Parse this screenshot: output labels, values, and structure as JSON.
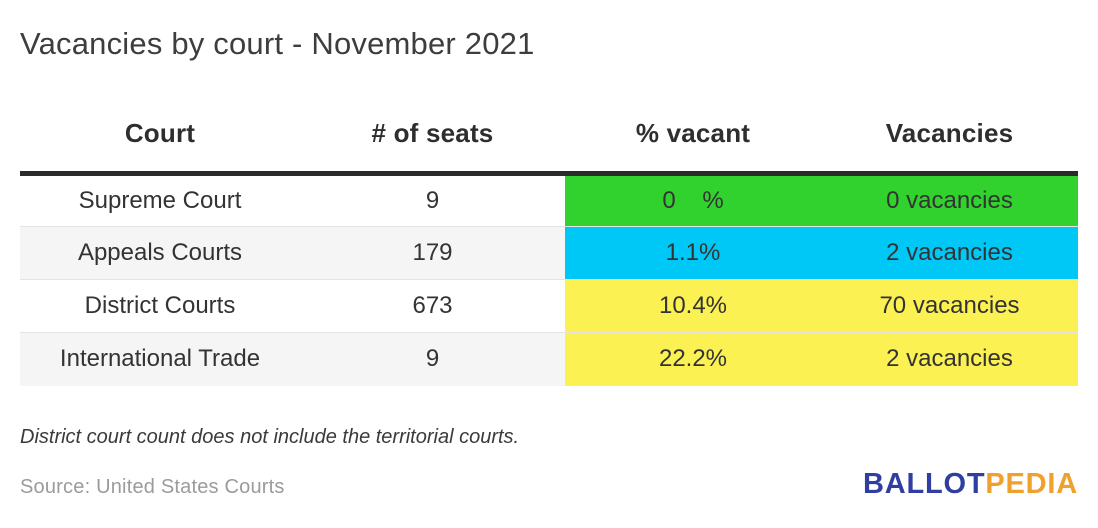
{
  "title": "Vacancies by court - November 2021",
  "table": {
    "columns": [
      "Court",
      "# of seats",
      "% vacant",
      "Vacancies"
    ],
    "rows": [
      {
        "court": "Supreme Court",
        "seats": "9",
        "pct": "0    %",
        "vac": "0 vacancies",
        "color": "#31d12e"
      },
      {
        "court": "Appeals Courts",
        "seats": "179",
        "pct": "1.1%",
        "vac": "2 vacancies",
        "color": "#00c8f6"
      },
      {
        "court": "District Courts",
        "seats": "673",
        "pct": "10.4%",
        "vac": "70 vacancies",
        "color": "#fcf152"
      },
      {
        "court": "International Trade",
        "seats": "9",
        "pct": "22.2%",
        "vac": "2 vacancies",
        "color": "#fcf152"
      }
    ]
  },
  "note": "District court count does not include the territorial courts.",
  "source": "Source: United States Courts",
  "logo": {
    "part1": "BALLOT",
    "part2": "PEDIA",
    "blue": "#2f3ea0",
    "orange": "#f0a02c"
  },
  "colors": {
    "green": "#31d12e",
    "cyan": "#00c8f6",
    "yellow": "#fcf152",
    "stripe": "#f5f5f5",
    "header_rule": "#2b2b2b"
  },
  "chart_data": {
    "type": "table",
    "title": "Vacancies by court - November 2021",
    "columns": [
      "Court",
      "# of seats",
      "% vacant",
      "Vacancies"
    ],
    "categories": [
      "Supreme Court",
      "Appeals Courts",
      "District Courts",
      "International Trade"
    ],
    "series": [
      {
        "name": "# of seats",
        "values": [
          9,
          179,
          673,
          9
        ]
      },
      {
        "name": "% vacant",
        "values": [
          0,
          1.1,
          10.4,
          22.2
        ]
      },
      {
        "name": "Vacancies",
        "values": [
          0,
          2,
          70,
          2
        ]
      }
    ],
    "cell_colors_pct_and_vacancies": [
      "#31d12e",
      "#00c8f6",
      "#fcf152",
      "#fcf152"
    ],
    "note": "District court count does not include the territorial courts.",
    "source": "Source: United States Courts"
  }
}
